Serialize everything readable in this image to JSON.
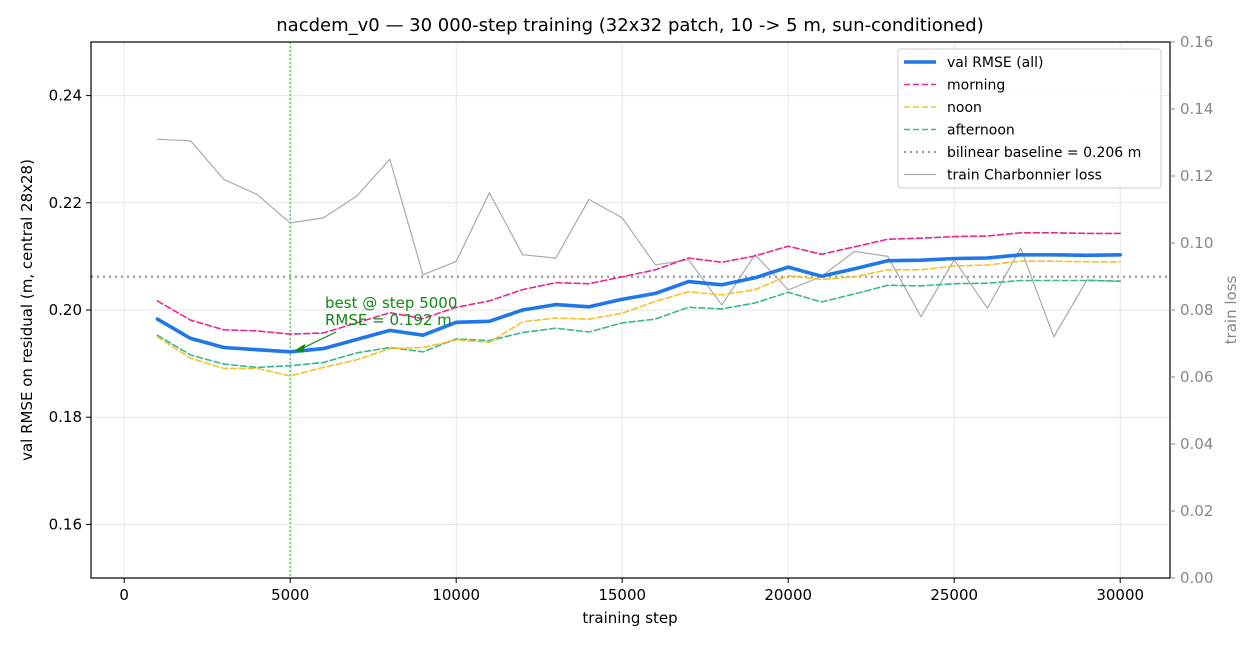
{
  "chart_data": {
    "type": "line",
    "title": "nacdem_v0 — 30 000-step training (32x32 patch, 10 -> 5 m, sun-conditioned)",
    "xlabel": "training step",
    "ylabel": "val RMSE on residual (m, central 28x28)",
    "y2label": "train loss",
    "xlim": [
      -1000,
      31500
    ],
    "ylim": [
      0.15,
      0.25
    ],
    "y2lim": [
      0.0,
      0.16
    ],
    "xticks": [
      0,
      5000,
      10000,
      15000,
      20000,
      25000,
      30000
    ],
    "yticks": [
      0.16,
      0.18,
      0.2,
      0.22,
      0.24
    ],
    "y2ticks": [
      0.0,
      0.02,
      0.04,
      0.06,
      0.08,
      0.1,
      0.12,
      0.14,
      0.16
    ],
    "grid": true,
    "legend_position": "top-right",
    "x": [
      1000,
      2000,
      3000,
      4000,
      5000,
      6000,
      7000,
      8000,
      9000,
      10000,
      11000,
      12000,
      13000,
      14000,
      15000,
      16000,
      17000,
      18000,
      19000,
      20000,
      21000,
      22000,
      23000,
      24000,
      25000,
      26000,
      27000,
      28000,
      29000,
      30000
    ],
    "series": [
      {
        "name": "val RMSE (all)",
        "axis": "left",
        "color": "#1f77e8",
        "style": "solid-thick",
        "values": [
          0.1983,
          0.1947,
          0.193,
          0.1926,
          0.1922,
          0.1928,
          0.1945,
          0.1962,
          0.1953,
          0.1977,
          0.1979,
          0.2,
          0.201,
          0.2006,
          0.202,
          0.2031,
          0.2053,
          0.2047,
          0.206,
          0.208,
          0.2063,
          0.2077,
          0.2092,
          0.2093,
          0.2096,
          0.2097,
          0.2103,
          0.2103,
          0.2102,
          0.2103
        ]
      },
      {
        "name": "morning",
        "axis": "left",
        "color": "#e6298f",
        "style": "dashed",
        "values": [
          0.2017,
          0.1981,
          0.1963,
          0.1961,
          0.1955,
          0.1957,
          0.1976,
          0.1995,
          0.1984,
          0.2005,
          0.2017,
          0.2038,
          0.2051,
          0.2049,
          0.2062,
          0.2075,
          0.2097,
          0.2089,
          0.2101,
          0.2119,
          0.2104,
          0.2118,
          0.2132,
          0.2134,
          0.2137,
          0.2138,
          0.2144,
          0.2144,
          0.2143,
          0.2143
        ]
      },
      {
        "name": "noon",
        "axis": "left",
        "color": "#f5c12e",
        "style": "dashed",
        "values": [
          0.195,
          0.191,
          0.1891,
          0.1891,
          0.1877,
          0.1893,
          0.1907,
          0.1928,
          0.193,
          0.1944,
          0.194,
          0.1978,
          0.1985,
          0.1983,
          0.1994,
          0.2016,
          0.2034,
          0.2028,
          0.2038,
          0.2064,
          0.2057,
          0.2062,
          0.2075,
          0.2075,
          0.2082,
          0.2084,
          0.2091,
          0.2091,
          0.209,
          0.209
        ]
      },
      {
        "name": "afternoon",
        "axis": "left",
        "color": "#3cb88e",
        "style": "dashed",
        "values": [
          0.1953,
          0.1916,
          0.1899,
          0.1893,
          0.1896,
          0.1902,
          0.192,
          0.193,
          0.1922,
          0.1946,
          0.1943,
          0.1958,
          0.1966,
          0.1959,
          0.1976,
          0.1983,
          0.2005,
          0.2002,
          0.2013,
          0.2033,
          0.2015,
          0.203,
          0.2046,
          0.2045,
          0.2049,
          0.205,
          0.2055,
          0.2055,
          0.2055,
          0.2054
        ]
      },
      {
        "name": "train Charbonnier loss",
        "axis": "right",
        "color": "#aaaaaa",
        "style": "solid-thin",
        "values": [
          0.131,
          0.1305,
          0.119,
          0.1145,
          0.106,
          0.1075,
          0.114,
          0.125,
          0.0905,
          0.0945,
          0.115,
          0.0965,
          0.0955,
          0.113,
          0.1075,
          0.0935,
          0.095,
          0.0815,
          0.0965,
          0.086,
          0.09,
          0.0975,
          0.096,
          0.078,
          0.095,
          0.0805,
          0.0985,
          0.072,
          0.089,
          0.0885
        ]
      }
    ],
    "baseline": {
      "name": "bilinear baseline = 0.206 m",
      "value": 0.2062,
      "color": "#999999",
      "style": "dotted"
    },
    "best_marker": {
      "x": 5000,
      "y": 0.1922,
      "color": "#33cc44",
      "label_line1": "best @ step 5000",
      "label_line2": "RMSE = 0.192 m",
      "label_color": "#118811"
    }
  }
}
